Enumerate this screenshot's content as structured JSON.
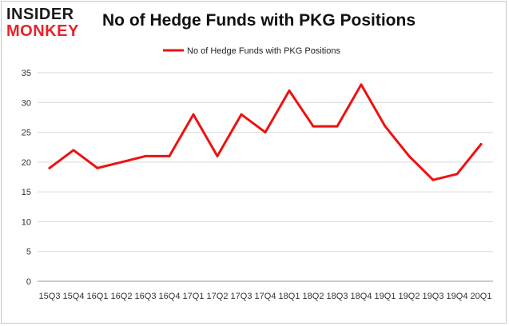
{
  "brand": {
    "line1": "INSIDER",
    "line2": "MONKEY"
  },
  "chart_data": {
    "type": "line",
    "title": "No of Hedge Funds with PKG Positions",
    "categories": [
      "15Q3",
      "15Q4",
      "16Q1",
      "16Q2",
      "16Q3",
      "16Q4",
      "17Q1",
      "17Q2",
      "17Q3",
      "17Q4",
      "18Q1",
      "18Q2",
      "18Q3",
      "18Q4",
      "19Q1",
      "19Q2",
      "19Q3",
      "19Q4",
      "20Q1"
    ],
    "series": [
      {
        "name": "No of Hedge Funds with PKG Positions",
        "values": [
          19,
          22,
          19,
          20,
          21,
          21,
          28,
          21,
          28,
          25,
          32,
          26,
          26,
          33,
          26,
          21,
          17,
          18,
          23
        ]
      }
    ],
    "yticks": [
      0,
      5,
      10,
      15,
      20,
      25,
      30,
      35
    ],
    "ylim": [
      0,
      35
    ],
    "grid": true,
    "legend": "top-center",
    "line_color": "#ee1111",
    "grid_color": "#d9d9d9"
  }
}
